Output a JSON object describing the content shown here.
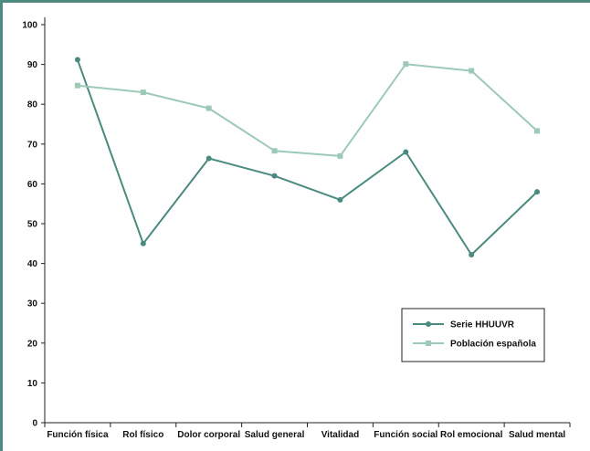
{
  "chart_data": {
    "type": "line",
    "categories": [
      "Función física",
      "Rol físico",
      "Dolor corporal",
      "Salud general",
      "Vitalidad",
      "Función social",
      "Rol emocional",
      "Salud mental"
    ],
    "series": [
      {
        "name": "Serie HHUUVR",
        "values": [
          91.2,
          45.0,
          66.4,
          62.0,
          56.0,
          68.0,
          42.2,
          58.0
        ],
        "color": "#4a8a7f",
        "marker": "circle"
      },
      {
        "name": "Población española",
        "values": [
          84.7,
          83.0,
          79.0,
          68.3,
          67.0,
          90.1,
          88.4,
          73.3
        ],
        "color": "#9ccab7",
        "marker": "square"
      }
    ],
    "yticks": [
      0,
      10,
      20,
      30,
      40,
      50,
      60,
      70,
      80,
      90,
      100
    ],
    "ylim": [
      0,
      100
    ],
    "grid": false,
    "legend_position": "lower-right",
    "title": "",
    "xlabel": "",
    "ylabel": ""
  }
}
